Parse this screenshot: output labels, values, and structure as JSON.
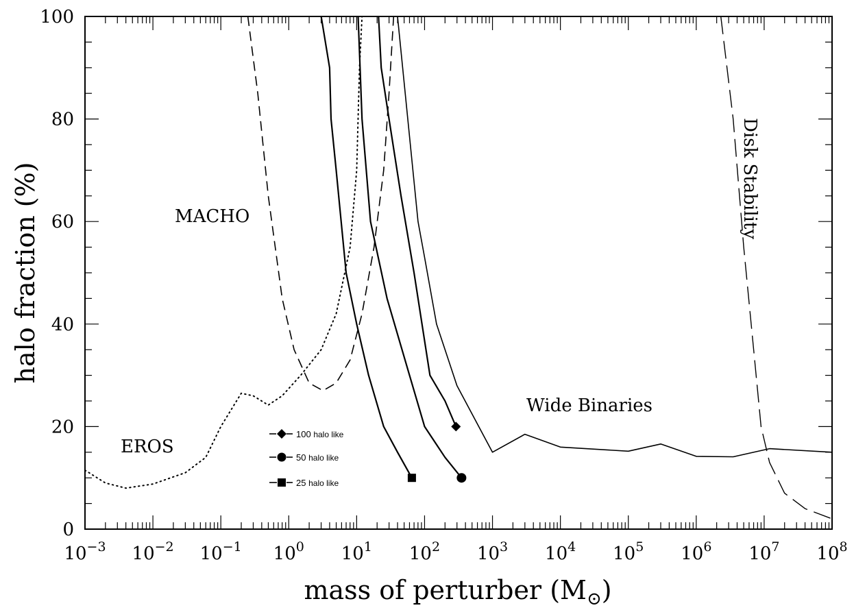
{
  "chart_data": {
    "type": "line",
    "xlabel": "mass of perturber",
    "xlabel_unit": "M",
    "ylabel": "halo fraction (%)",
    "xscale": "log",
    "xlim": [
      0.001,
      100000000
    ],
    "ylim": [
      0,
      100
    ],
    "x_ticks": [
      {
        "base": "10",
        "exp": "−3"
      },
      {
        "base": "10",
        "exp": "−2"
      },
      {
        "base": "10",
        "exp": "−1"
      },
      {
        "base": "10",
        "exp": "0"
      },
      {
        "base": "10",
        "exp": "1"
      },
      {
        "base": "10",
        "exp": "2"
      },
      {
        "base": "10",
        "exp": "3"
      },
      {
        "base": "10",
        "exp": "4"
      },
      {
        "base": "10",
        "exp": "5"
      },
      {
        "base": "10",
        "exp": "6"
      },
      {
        "base": "10",
        "exp": "7"
      },
      {
        "base": "10",
        "exp": "8"
      }
    ],
    "y_ticks": [
      "0",
      "20",
      "40",
      "60",
      "80",
      "100"
    ],
    "annotations": {
      "eros": "EROS",
      "macho": "MACHO",
      "wide_binaries": "Wide Binaries",
      "disk_stability": "Disk Stability"
    },
    "legend": [
      {
        "name": "100",
        "suffix": "halo like",
        "marker": "diamond"
      },
      {
        "name": "50",
        "suffix": "halo like",
        "marker": "circle"
      },
      {
        "name": "25",
        "suffix": "halo like",
        "marker": "square"
      }
    ],
    "series": [
      {
        "name": "EROS",
        "style": "dotted",
        "points": [
          [
            0.001,
            11.5
          ],
          [
            0.002,
            9
          ],
          [
            0.004,
            8
          ],
          [
            0.01,
            8.8
          ],
          [
            0.03,
            11
          ],
          [
            0.06,
            14
          ],
          [
            0.1,
            20
          ],
          [
            0.2,
            26.5
          ],
          [
            0.3,
            26
          ],
          [
            0.5,
            24.2
          ],
          [
            0.8,
            26
          ],
          [
            1.5,
            30
          ],
          [
            3,
            35
          ],
          [
            5,
            42
          ],
          [
            8,
            55
          ],
          [
            10,
            70
          ],
          [
            11,
            90
          ],
          [
            12,
            100
          ]
        ]
      },
      {
        "name": "MACHO",
        "style": "dashed",
        "points": [
          [
            0.25,
            100
          ],
          [
            0.35,
            85
          ],
          [
            0.5,
            65
          ],
          [
            0.8,
            45
          ],
          [
            1.2,
            35
          ],
          [
            2,
            28.5
          ],
          [
            3.2,
            27
          ],
          [
            5,
            28.5
          ],
          [
            8,
            33
          ],
          [
            12,
            42
          ],
          [
            18,
            55
          ],
          [
            25,
            70
          ],
          [
            30,
            85
          ],
          [
            35,
            100
          ]
        ]
      },
      {
        "name": "Wide Binaries",
        "style": "solid-thin",
        "points": [
          [
            40,
            100
          ],
          [
            80,
            60
          ],
          [
            100,
            53
          ],
          [
            150,
            40
          ],
          [
            300,
            28
          ],
          [
            1000,
            15
          ],
          [
            3000,
            18.5
          ],
          [
            10000,
            16
          ],
          [
            100000,
            15.2
          ],
          [
            300000,
            16.6
          ],
          [
            1000000,
            14.2
          ],
          [
            3500000,
            14.1
          ],
          [
            12000000,
            15.7
          ],
          [
            100000000,
            15
          ]
        ]
      },
      {
        "name": "Disk Stability",
        "style": "long-dashed",
        "points": [
          [
            2300000,
            100
          ],
          [
            3500000,
            80
          ],
          [
            5000000,
            55
          ],
          [
            7000000,
            35
          ],
          [
            9000000,
            20
          ],
          [
            12000000,
            13
          ],
          [
            20000000,
            7
          ],
          [
            40000000,
            4
          ],
          [
            100000000,
            2
          ]
        ]
      },
      {
        "name": "25",
        "style": "solid",
        "marker": "square",
        "points": [
          [
            3,
            100
          ],
          [
            4,
            90
          ],
          [
            4.2,
            80
          ],
          [
            5,
            70
          ],
          [
            7,
            50
          ],
          [
            10,
            40
          ],
          [
            15,
            30
          ],
          [
            25,
            20
          ],
          [
            40,
            15
          ],
          [
            65,
            10
          ]
        ]
      },
      {
        "name": "50",
        "style": "solid",
        "marker": "circle",
        "points": [
          [
            10.5,
            100
          ],
          [
            12,
            80
          ],
          [
            16,
            60
          ],
          [
            28,
            45
          ],
          [
            60,
            30
          ],
          [
            100,
            20
          ],
          [
            200,
            14
          ],
          [
            350,
            10
          ]
        ]
      },
      {
        "name": "100",
        "style": "solid",
        "marker": "diamond",
        "points": [
          [
            21,
            100
          ],
          [
            23,
            90
          ],
          [
            30,
            80
          ],
          [
            45,
            65
          ],
          [
            70,
            50
          ],
          [
            120,
            30
          ],
          [
            200,
            25
          ],
          [
            290,
            20
          ]
        ]
      }
    ]
  }
}
